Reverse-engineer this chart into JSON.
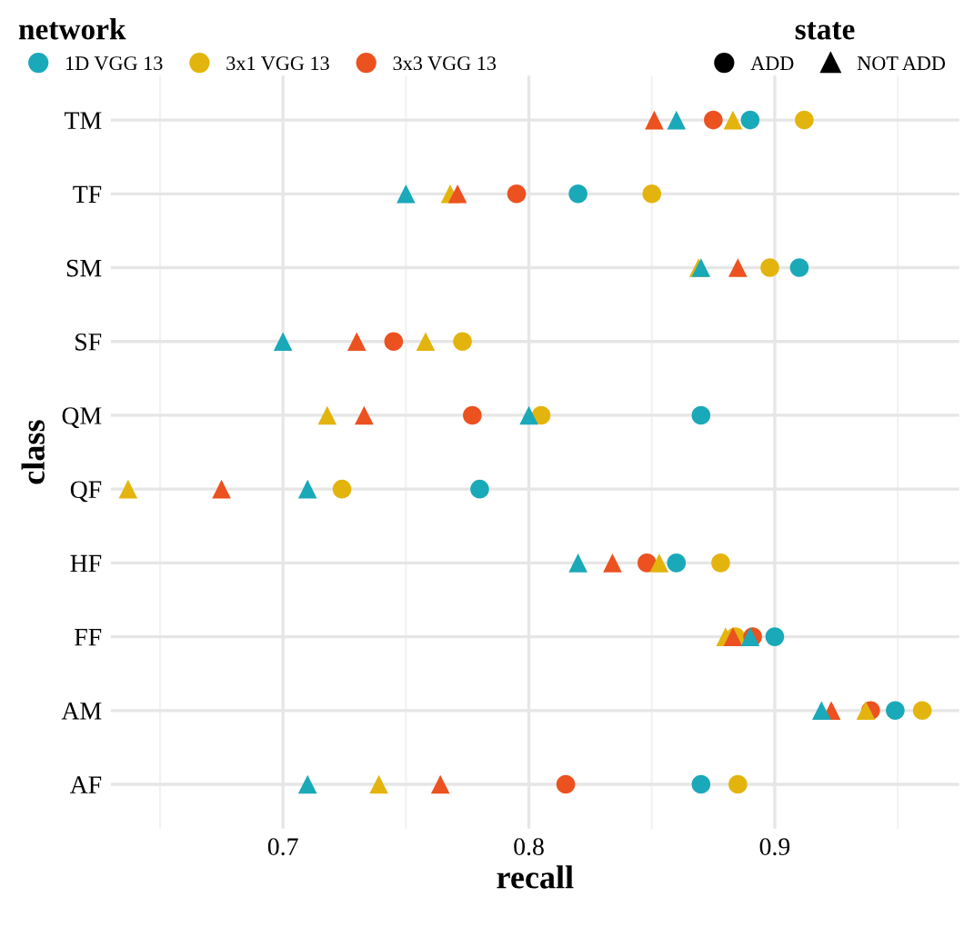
{
  "chart_data": {
    "type": "scatter",
    "xlabel": "recall",
    "ylabel": "class",
    "categories": [
      "TM",
      "TF",
      "SM",
      "SF",
      "QM",
      "QF",
      "HF",
      "FF",
      "AM",
      "AF"
    ],
    "orientation": "horizontal",
    "xlim": [
      0.63,
      0.975
    ],
    "xticks": [
      {
        "value": 0.65,
        "label": null
      },
      0.7,
      {
        "value": 0.75,
        "label": null
      },
      0.8,
      {
        "value": 0.85,
        "label": null
      },
      0.9,
      {
        "value": 0.95,
        "label": null
      }
    ],
    "grid": true,
    "legend": "top",
    "legend_title": "network",
    "annotations": [
      "state",
      "ADD",
      "NOT ADD"
    ],
    "series": [
      {
        "name": "1D VGG 13",
        "color": "#1aa9b9",
        "marker": "circle",
        "values": [
          0.89,
          0.82,
          0.91,
          null,
          0.87,
          0.78,
          0.86,
          0.9,
          0.949,
          0.87
        ]
      },
      {
        "name": "3x1 VGG 13",
        "color": "#e3b40e",
        "marker": "circle",
        "values": [
          0.912,
          0.85,
          0.898,
          0.773,
          0.805,
          0.724,
          0.878,
          0.884,
          0.96,
          0.885
        ]
      },
      {
        "name": "3x3 VGG 13",
        "color": "#ec5120",
        "marker": "circle",
        "values": [
          0.875,
          0.795,
          null,
          0.745,
          0.777,
          null,
          0.848,
          0.891,
          0.939,
          0.815
        ]
      },
      {
        "color": "#e3b40e",
        "marker": "triangle",
        "values": [
          0.883,
          0.768,
          0.869,
          0.758,
          0.718,
          0.637,
          0.853,
          0.88,
          0.937,
          0.739
        ]
      },
      {
        "color": "#ec5120",
        "marker": "triangle",
        "values": [
          0.851,
          0.771,
          0.885,
          0.73,
          0.733,
          0.675,
          0.834,
          0.883,
          0.923,
          0.764
        ]
      },
      {
        "color": "#1aa9b9",
        "marker": "triangle",
        "values": [
          0.86,
          0.75,
          0.87,
          0.7,
          0.8,
          0.71,
          0.82,
          0.89,
          0.919,
          0.71
        ]
      }
    ]
  }
}
